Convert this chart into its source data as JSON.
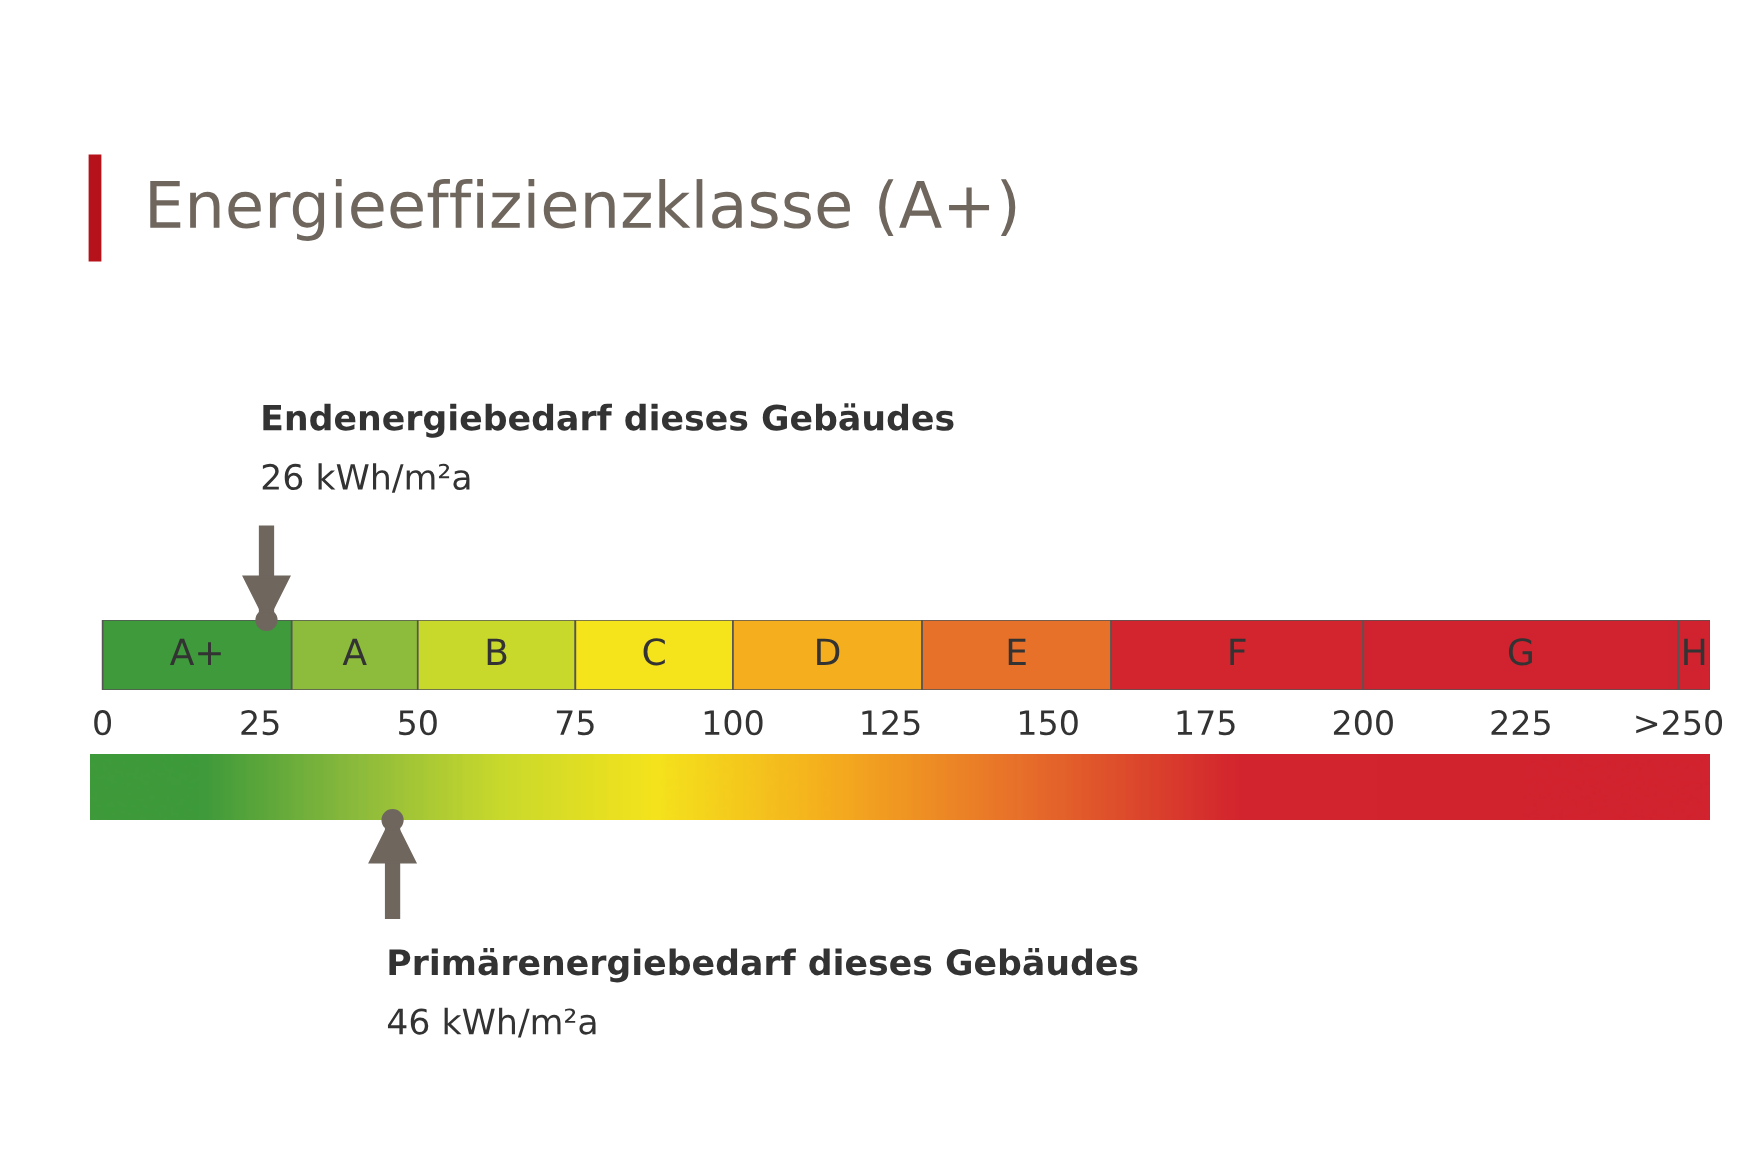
{
  "chart_data": {
    "type": "bar",
    "orientation": "horizontal",
    "stacked": true,
    "title": "Energieeffizienzklasse (A+)",
    "categories": [
      null
    ],
    "series": [
      {
        "name": "A+",
        "color": "#3e9a3a",
        "values": [
          30
        ]
      },
      {
        "name": "A",
        "color": "#8dbb3c",
        "values": [
          20
        ]
      },
      {
        "name": "B",
        "color": "#c9d92c",
        "values": [
          25
        ]
      },
      {
        "name": "C",
        "color": "#f5e31c",
        "values": [
          25
        ]
      },
      {
        "name": "D",
        "color": "#f5ae1e",
        "values": [
          30
        ]
      },
      {
        "name": "E",
        "color": "#e8712a",
        "values": [
          30
        ]
      },
      {
        "name": "F",
        "color": "#d3252e",
        "values": [
          40
        ]
      },
      {
        "name": "G",
        "color": "#d1232f",
        "values": [
          50
        ]
      },
      {
        "name": "H",
        "color": "#d1232f",
        "values": [
          5
        ]
      }
    ],
    "xlim": [
      -2,
      255
    ],
    "xticks": [
      0,
      25,
      50,
      75,
      100,
      125,
      150,
      175,
      200,
      225,
      {
        "value": 250,
        "label": ">250"
      }
    ],
    "grid": false,
    "legend": false,
    "ref_lines": [
      {
        "axis": "x",
        "value": 26,
        "label": "Endenergiebedarf dieses Gebäudes\n26 kWh/m²a",
        "color": "#6f665e"
      },
      {
        "axis": "x",
        "value": 46,
        "label": "Primärenergiebedarf dieses Gebäudes\n46 kWh/m²a",
        "color": "#6f665e"
      }
    ]
  }
}
